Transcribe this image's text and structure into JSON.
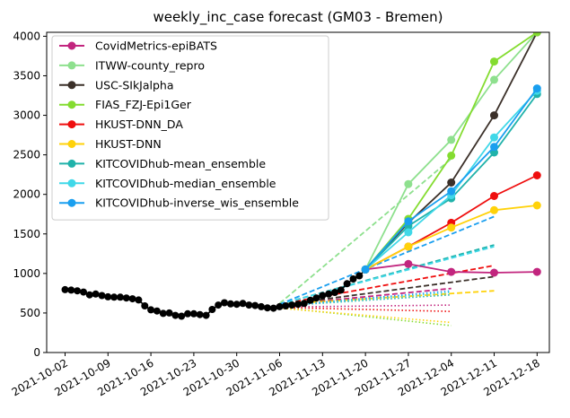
{
  "chart_data": {
    "type": "line",
    "title": "weekly_inc_case forecast (GM03 - Bremen)",
    "xlabel": "",
    "ylabel": "",
    "x_range": [
      "2021-09-29",
      "2021-12-20"
    ],
    "ylim": [
      0,
      4050
    ],
    "x_ticks": [
      "2021-10-02",
      "2021-10-09",
      "2021-10-16",
      "2021-10-23",
      "2021-10-30",
      "2021-11-06",
      "2021-11-13",
      "2021-11-20",
      "2021-11-27",
      "2021-12-04",
      "2021-12-11",
      "2021-12-18"
    ],
    "y_ticks": [
      0,
      500,
      1000,
      1500,
      2000,
      2500,
      3000,
      3500,
      4000
    ],
    "grid": false,
    "legend_position": "top-left",
    "observed": {
      "color": "#000000",
      "points": [
        [
          "2021-10-02",
          795
        ],
        [
          "2021-10-03",
          790
        ],
        [
          "2021-10-04",
          780
        ],
        [
          "2021-10-05",
          765
        ],
        [
          "2021-10-06",
          730
        ],
        [
          "2021-10-07",
          740
        ],
        [
          "2021-10-08",
          720
        ],
        [
          "2021-10-09",
          705
        ],
        [
          "2021-10-10",
          700
        ],
        [
          "2021-10-11",
          700
        ],
        [
          "2021-10-12",
          690
        ],
        [
          "2021-10-13",
          680
        ],
        [
          "2021-10-14",
          665
        ],
        [
          "2021-10-15",
          590
        ],
        [
          "2021-10-16",
          540
        ],
        [
          "2021-10-17",
          525
        ],
        [
          "2021-10-18",
          495
        ],
        [
          "2021-10-19",
          500
        ],
        [
          "2021-10-20",
          470
        ],
        [
          "2021-10-21",
          460
        ],
        [
          "2021-10-22",
          490
        ],
        [
          "2021-10-23",
          490
        ],
        [
          "2021-10-24",
          480
        ],
        [
          "2021-10-25",
          470
        ],
        [
          "2021-10-26",
          545
        ],
        [
          "2021-10-27",
          600
        ],
        [
          "2021-10-28",
          630
        ],
        [
          "2021-10-29",
          615
        ],
        [
          "2021-10-30",
          610
        ],
        [
          "2021-10-31",
          620
        ],
        [
          "2021-11-01",
          600
        ],
        [
          "2021-11-02",
          595
        ],
        [
          "2021-11-03",
          580
        ],
        [
          "2021-11-04",
          565
        ],
        [
          "2021-11-05",
          560
        ],
        [
          "2021-11-06",
          580
        ],
        [
          "2021-11-07",
          590
        ],
        [
          "2021-11-08",
          600
        ],
        [
          "2021-11-09",
          610
        ],
        [
          "2021-11-10",
          620
        ],
        [
          "2021-11-11",
          660
        ],
        [
          "2021-11-12",
          690
        ],
        [
          "2021-11-13",
          720
        ],
        [
          "2021-11-14",
          740
        ],
        [
          "2021-11-15",
          760
        ],
        [
          "2021-11-16",
          790
        ],
        [
          "2021-11-17",
          870
        ],
        [
          "2021-11-18",
          930
        ],
        [
          "2021-11-19",
          970
        ],
        [
          "2021-11-20",
          1050
        ]
      ]
    },
    "series": [
      {
        "name": "CovidMetrics-epiBATS",
        "color": "#c2257e",
        "points": [
          [
            "2021-11-20",
            1050
          ],
          [
            "2021-11-27",
            1120
          ],
          [
            "2021-12-04",
            1020
          ],
          [
            "2021-12-11",
            1010
          ],
          [
            "2021-12-18",
            1020
          ]
        ],
        "dashed": [
          [
            "2021-11-06",
            600
          ],
          [
            "2021-12-04",
            810
          ]
        ],
        "dotted": [
          [
            "2021-11-06",
            575
          ],
          [
            "2021-12-04",
            600
          ]
        ]
      },
      {
        "name": "ITWW-county_repro",
        "color": "#8ee08e",
        "points": [
          [
            "2021-11-20",
            1050
          ],
          [
            "2021-11-27",
            2130
          ],
          [
            "2021-12-04",
            2690
          ],
          [
            "2021-12-11",
            3450
          ],
          [
            "2021-12-18",
            4050
          ]
        ],
        "dashed": [
          [
            "2021-11-06",
            620
          ],
          [
            "2021-12-04",
            2450
          ]
        ],
        "dotted": []
      },
      {
        "name": "USC-SIkJalpha",
        "color": "#3b3029",
        "points": [
          [
            "2021-11-20",
            1050
          ],
          [
            "2021-11-27",
            1640
          ],
          [
            "2021-12-04",
            2150
          ],
          [
            "2021-12-11",
            3000
          ],
          [
            "2021-12-18",
            4050
          ]
        ],
        "dashed": [
          [
            "2021-11-06",
            600
          ],
          [
            "2021-12-11",
            960
          ]
        ],
        "dotted": []
      },
      {
        "name": "FIAS_FZJ-Epi1Ger",
        "color": "#84dc30",
        "points": [
          [
            "2021-11-20",
            1050
          ],
          [
            "2021-11-27",
            1690
          ],
          [
            "2021-12-04",
            2490
          ],
          [
            "2021-12-11",
            3680
          ],
          [
            "2021-12-18",
            4050
          ]
        ],
        "dashed": [],
        "dotted": [
          [
            "2021-11-06",
            570
          ],
          [
            "2021-12-04",
            340
          ]
        ]
      },
      {
        "name": "HKUST-DNN_DA",
        "color": "#ef0e0e",
        "points": [
          [
            "2021-11-20",
            1050
          ],
          [
            "2021-11-27",
            1340
          ],
          [
            "2021-12-04",
            1640
          ],
          [
            "2021-12-11",
            1980
          ],
          [
            "2021-12-18",
            2240
          ]
        ],
        "dashed": [
          [
            "2021-11-06",
            610
          ],
          [
            "2021-12-11",
            1100
          ]
        ],
        "dotted": [
          [
            "2021-11-06",
            570
          ],
          [
            "2021-12-04",
            520
          ]
        ]
      },
      {
        "name": "HKUST-DNN",
        "color": "#ffd20a",
        "points": [
          [
            "2021-11-20",
            1050
          ],
          [
            "2021-11-27",
            1340
          ],
          [
            "2021-12-04",
            1580
          ],
          [
            "2021-12-11",
            1800
          ],
          [
            "2021-12-18",
            1860
          ]
        ],
        "dashed": [
          [
            "2021-11-06",
            610
          ],
          [
            "2021-12-11",
            780
          ]
        ],
        "dotted": [
          [
            "2021-11-06",
            560
          ],
          [
            "2021-12-04",
            380
          ]
        ]
      },
      {
        "name": "KITCOVIDhub-mean_ensemble",
        "color": "#20b2aa",
        "points": [
          [
            "2021-11-20",
            1050
          ],
          [
            "2021-11-27",
            1600
          ],
          [
            "2021-12-04",
            1950
          ],
          [
            "2021-12-11",
            2530
          ],
          [
            "2021-12-18",
            3270
          ]
        ],
        "dashed": [
          [
            "2021-11-06",
            610
          ],
          [
            "2021-12-11",
            1360
          ]
        ],
        "dotted": [
          [
            "2021-11-06",
            590
          ],
          [
            "2021-12-04",
            730
          ]
        ]
      },
      {
        "name": "KITCOVIDhub-median_ensemble",
        "color": "#40d8e8",
        "points": [
          [
            "2021-11-20",
            1050
          ],
          [
            "2021-11-27",
            1520
          ],
          [
            "2021-12-04",
            1990
          ],
          [
            "2021-12-11",
            2720
          ],
          [
            "2021-12-18",
            3310
          ]
        ],
        "dashed": [
          [
            "2021-11-06",
            610
          ],
          [
            "2021-12-11",
            1340
          ]
        ],
        "dotted": [
          [
            "2021-11-06",
            590
          ],
          [
            "2021-12-04",
            760
          ]
        ]
      },
      {
        "name": "KITCOVIDhub-inverse_wis_ensemble",
        "color": "#1a9fef",
        "points": [
          [
            "2021-11-20",
            1050
          ],
          [
            "2021-11-27",
            1660
          ],
          [
            "2021-12-04",
            2040
          ],
          [
            "2021-12-11",
            2600
          ],
          [
            "2021-12-18",
            3340
          ]
        ],
        "dashed": [
          [
            "2021-11-06",
            610
          ],
          [
            "2021-12-11",
            1720
          ]
        ],
        "dotted": [
          [
            "2021-11-06",
            590
          ],
          [
            "2021-12-04",
            780
          ]
        ]
      }
    ]
  }
}
